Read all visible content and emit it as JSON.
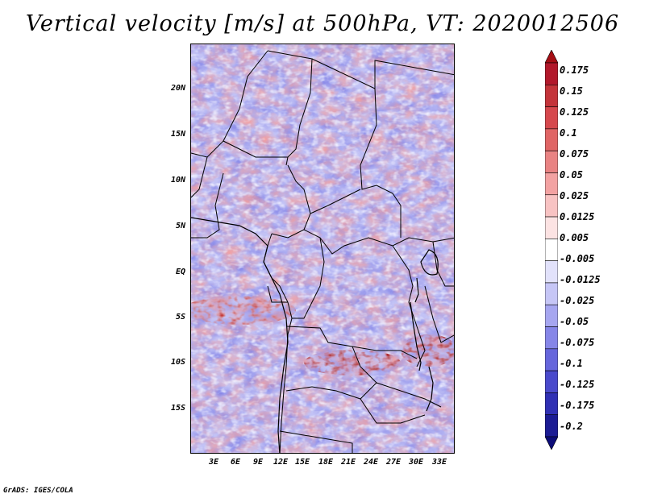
{
  "title": "Vertical velocity [m/s] at 500hPa, VT: 2020012506",
  "map": {
    "variable": "Vertical velocity",
    "units": "m/s",
    "level": "500hPa",
    "valid_time": "2020012506",
    "lat_range": [
      -21,
      24
    ],
    "lon_range": [
      0,
      36
    ],
    "lat_labels": [
      "20N",
      "15N",
      "10N",
      "5N",
      "EQ",
      "5S",
      "10S",
      "15S"
    ],
    "lon_labels": [
      "3E",
      "6E",
      "9E",
      "12E",
      "15E",
      "18E",
      "21E",
      "24E",
      "27E",
      "30E",
      "33E"
    ]
  },
  "colorbar": {
    "labels": [
      "0.175",
      "0.15",
      "0.125",
      "0.1",
      "0.075",
      "0.05",
      "0.025",
      "0.0125",
      "0.005",
      "-0.005",
      "-0.0125",
      "-0.025",
      "-0.05",
      "-0.075",
      "-0.1",
      "-0.125",
      "-0.175",
      "-0.2"
    ],
    "colors": [
      "#a50f15",
      "#b2182b",
      "#c4343a",
      "#d6484d",
      "#e06565",
      "#e98383",
      "#f3a2a2",
      "#f8c3c3",
      "#fce3e3",
      "#ffffff",
      "#e2e2fb",
      "#c6c6f6",
      "#a6a6f0",
      "#8686e8",
      "#6666dc",
      "#4a4acc",
      "#3030b4",
      "#1c1c94",
      "#0c0c78"
    ]
  },
  "colors": {
    "positive": "#e98383",
    "negative": "#8686e8",
    "neutral": "#f4f4ff",
    "strong_positive": "#a50f15"
  },
  "credit": "GrADS: IGES/COLA"
}
